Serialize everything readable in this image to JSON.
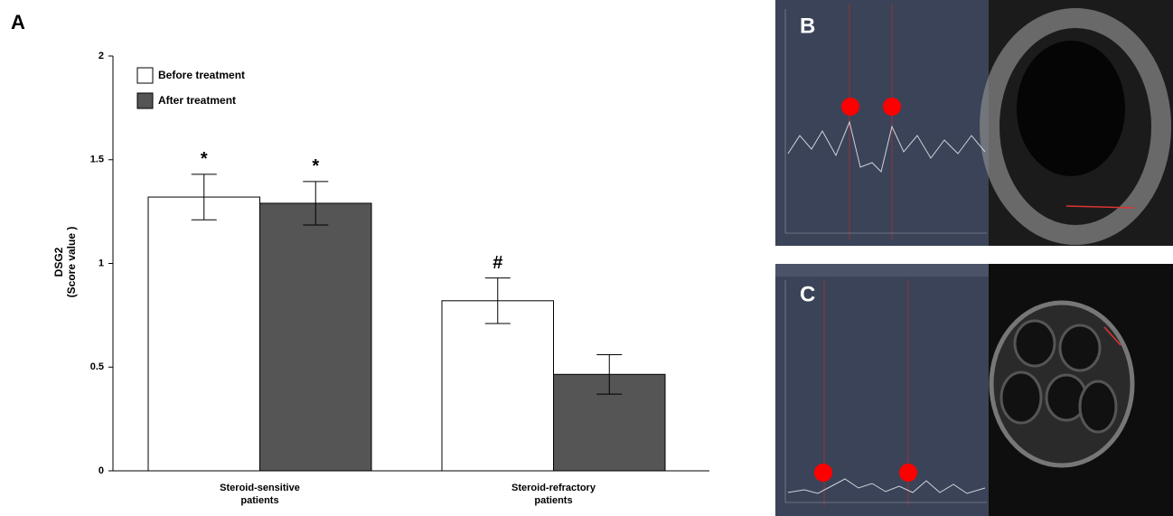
{
  "panel_labels": {
    "a": "A",
    "b": "B",
    "c": "C"
  },
  "chart_data": {
    "type": "bar",
    "y_label": [
      "DSG2",
      "(Score value )"
    ],
    "categories": [
      "Steroid-sensitive patients",
      "Steroid-refractory patients"
    ],
    "series": [
      {
        "name": "Before treatment",
        "color": "#ffffff",
        "values": [
          1.32,
          0.82
        ],
        "errors": [
          0.11,
          0.11
        ],
        "markers": [
          "*",
          "#"
        ]
      },
      {
        "name": "After treatment",
        "color": "#555555",
        "values": [
          1.29,
          0.465
        ],
        "errors": [
          0.105,
          0.095
        ],
        "markers": [
          "*",
          null
        ]
      }
    ],
    "ylim": [
      0,
      2
    ],
    "yticks": [
      0,
      0.5,
      1,
      1.5,
      2
    ],
    "grid": false,
    "legend": "top-left"
  }
}
